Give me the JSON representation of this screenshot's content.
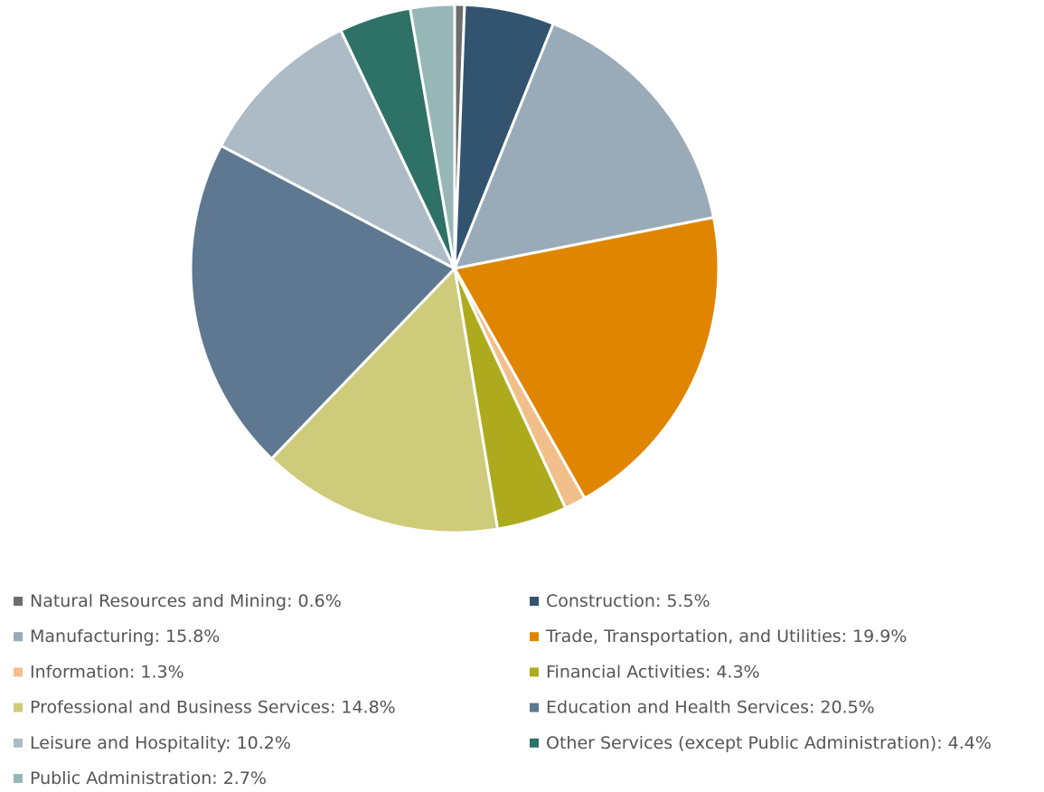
{
  "chart_data": {
    "type": "pie",
    "categories": [
      "Natural Resources and Mining:",
      "Construction:",
      "Manufacturing:",
      "Trade, Transportation, and Utilities:",
      "Information:",
      "Financial Activities:",
      "Professional and Business Services:",
      "Education and Health Services:",
      "Leisure and Hospitality:",
      "Other Services (except Public Administration):",
      "Public Administration:"
    ],
    "values": [
      0.6,
      5.5,
      15.8,
      19.9,
      1.3,
      4.3,
      14.8,
      20.5,
      10.2,
      4.4,
      2.7
    ],
    "value_labels": [
      "0.6%",
      "5.5%",
      "15.8%",
      "19.9%",
      "1.3%",
      "4.3%",
      "14.8%",
      "20.5%",
      "10.2%",
      "4.4%",
      "2.7%"
    ],
    "colors": [
      "#6d6d6d",
      "#32546f",
      "#99aab8",
      "#e08500",
      "#f2bf8a",
      "#aeaa1e",
      "#cecb7a",
      "#5e7891",
      "#adbbc7",
      "#2e7166",
      "#96b7b5"
    ],
    "legend": "bottom"
  }
}
